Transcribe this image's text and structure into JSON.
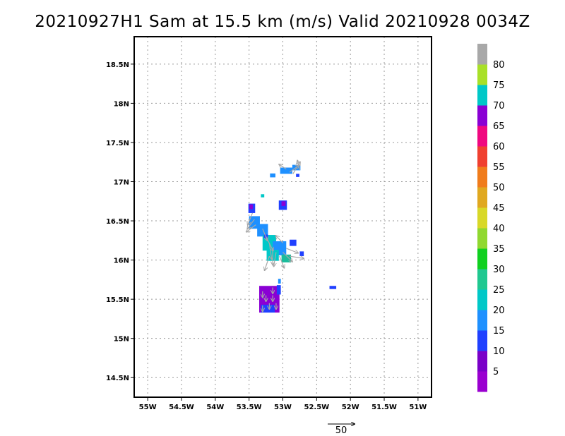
{
  "title": "20210927H1 Sam at 15.5 km (m/s) Valid 20210928 0034Z",
  "map": {
    "lon_range": [
      -55.2,
      -50.8
    ],
    "lat_range": [
      14.25,
      18.85
    ],
    "lon_ticks": [
      {
        "value": -55,
        "label": "55W"
      },
      {
        "value": -54.5,
        "label": "54.5W"
      },
      {
        "value": -54,
        "label": "54W"
      },
      {
        "value": -53.5,
        "label": "53.5W"
      },
      {
        "value": -53,
        "label": "53W"
      },
      {
        "value": -52.5,
        "label": "52.5W"
      },
      {
        "value": -52,
        "label": "52W"
      },
      {
        "value": -51.5,
        "label": "51.5W"
      },
      {
        "value": -51,
        "label": "51W"
      }
    ],
    "lat_ticks": [
      {
        "value": 18.5,
        "label": "18.5N"
      },
      {
        "value": 18,
        "label": "18N"
      },
      {
        "value": 17.5,
        "label": "17.5N"
      },
      {
        "value": 17,
        "label": "17N"
      },
      {
        "value": 16.5,
        "label": "16.5N"
      },
      {
        "value": 16,
        "label": "16N"
      },
      {
        "value": 15.5,
        "label": "15.5N"
      },
      {
        "value": 15,
        "label": "15N"
      },
      {
        "value": 14.5,
        "label": "14.5N"
      }
    ],
    "grid": true,
    "vector_color": "#a8a8a8"
  },
  "wind_patches": [
    {
      "lon": -52.95,
      "lat": 17.14,
      "w": 0.18,
      "h": 0.08,
      "color": "#1e90ff"
    },
    {
      "lon": -52.8,
      "lat": 17.18,
      "w": 0.12,
      "h": 0.07,
      "color": "#1e90ff"
    },
    {
      "lon": -53.15,
      "lat": 17.08,
      "w": 0.08,
      "h": 0.05,
      "color": "#1e90ff"
    },
    {
      "lon": -52.78,
      "lat": 17.08,
      "w": 0.05,
      "h": 0.04,
      "color": "#2040ff"
    },
    {
      "lon": -53.3,
      "lat": 16.82,
      "w": 0.05,
      "h": 0.04,
      "color": "#00c8c8"
    },
    {
      "lon": -53.0,
      "lat": 16.7,
      "w": 0.12,
      "h": 0.12,
      "color": "#2040ff"
    },
    {
      "lon": -52.99,
      "lat": 16.72,
      "w": 0.06,
      "h": 0.06,
      "color": "#8a00d4"
    },
    {
      "lon": -53.46,
      "lat": 16.66,
      "w": 0.1,
      "h": 0.12,
      "color": "#2040ff"
    },
    {
      "lon": -53.47,
      "lat": 16.68,
      "w": 0.05,
      "h": 0.06,
      "color": "#8a00d4"
    },
    {
      "lon": -53.42,
      "lat": 16.48,
      "w": 0.16,
      "h": 0.16,
      "color": "#1e90ff"
    },
    {
      "lon": -53.3,
      "lat": 16.38,
      "w": 0.16,
      "h": 0.16,
      "color": "#1e90ff"
    },
    {
      "lon": -53.2,
      "lat": 16.22,
      "w": 0.2,
      "h": 0.2,
      "color": "#00c8c8"
    },
    {
      "lon": -53.05,
      "lat": 16.15,
      "w": 0.2,
      "h": 0.18,
      "color": "#1e90ff"
    },
    {
      "lon": -53.15,
      "lat": 16.06,
      "w": 0.18,
      "h": 0.14,
      "color": "#00c8c8"
    },
    {
      "lon": -52.95,
      "lat": 16.02,
      "w": 0.14,
      "h": 0.1,
      "color": "#1abc9c"
    },
    {
      "lon": -52.85,
      "lat": 16.22,
      "w": 0.1,
      "h": 0.08,
      "color": "#2040ff"
    },
    {
      "lon": -52.72,
      "lat": 16.08,
      "w": 0.06,
      "h": 0.06,
      "color": "#2040ff"
    },
    {
      "lon": -53.25,
      "lat": 16.3,
      "w": 0.06,
      "h": 0.05,
      "color": "#2040ff"
    },
    {
      "lon": -53.2,
      "lat": 15.5,
      "w": 0.3,
      "h": 0.34,
      "color": "#8a00d4"
    },
    {
      "lon": -53.06,
      "lat": 15.62,
      "w": 0.06,
      "h": 0.12,
      "color": "#2040ff"
    },
    {
      "lon": -53.05,
      "lat": 15.73,
      "w": 0.04,
      "h": 0.06,
      "color": "#1e90ff"
    },
    {
      "lon": -53.22,
      "lat": 15.38,
      "w": 0.2,
      "h": 0.1,
      "color": "#2040ff"
    },
    {
      "lon": -52.26,
      "lat": 15.65,
      "w": 0.1,
      "h": 0.04,
      "color": "#2040ff"
    }
  ],
  "wind_vectors": [
    {
      "lon": -52.9,
      "lat": 17.12,
      "u": 8,
      "v": 6
    },
    {
      "lon": -52.85,
      "lat": 17.1,
      "u": 6,
      "v": 10
    },
    {
      "lon": -52.95,
      "lat": 17.16,
      "u": -6,
      "v": 4
    },
    {
      "lon": -52.75,
      "lat": 17.15,
      "u": -2,
      "v": 8
    },
    {
      "lon": -53.45,
      "lat": 16.6,
      "u": -4,
      "v": -10
    },
    {
      "lon": -53.42,
      "lat": 16.52,
      "u": -6,
      "v": -8
    },
    {
      "lon": -53.4,
      "lat": 16.45,
      "u": -8,
      "v": -6
    },
    {
      "lon": -53.3,
      "lat": 16.4,
      "u": 4,
      "v": -10
    },
    {
      "lon": -53.25,
      "lat": 16.3,
      "u": 6,
      "v": -12
    },
    {
      "lon": -53.2,
      "lat": 16.22,
      "u": 2,
      "v": -14
    },
    {
      "lon": -53.15,
      "lat": 16.15,
      "u": 0,
      "v": -14
    },
    {
      "lon": -53.1,
      "lat": 16.1,
      "u": -2,
      "v": -12
    },
    {
      "lon": -53.05,
      "lat": 16.05,
      "u": 4,
      "v": -10
    },
    {
      "lon": -53.0,
      "lat": 16.1,
      "u": 8,
      "v": -8
    },
    {
      "lon": -52.95,
      "lat": 16.15,
      "u": 10,
      "v": -4
    },
    {
      "lon": -52.9,
      "lat": 16.05,
      "u": 12,
      "v": -2
    },
    {
      "lon": -53.2,
      "lat": 16.05,
      "u": -4,
      "v": -12
    },
    {
      "lon": -53.0,
      "lat": 16.22,
      "u": -6,
      "v": 6
    },
    {
      "lon": -53.3,
      "lat": 15.6,
      "u": 0,
      "v": -5
    },
    {
      "lon": -53.25,
      "lat": 15.55,
      "u": 0,
      "v": -5
    },
    {
      "lon": -53.15,
      "lat": 15.55,
      "u": 0,
      "v": -5
    },
    {
      "lon": -53.2,
      "lat": 15.45,
      "u": 0,
      "v": -5
    },
    {
      "lon": -53.1,
      "lat": 15.45,
      "u": 0,
      "v": -5
    },
    {
      "lon": -53.3,
      "lat": 15.42,
      "u": 0,
      "v": -5
    },
    {
      "lon": -53.15,
      "lat": 15.65,
      "u": 0,
      "v": -5
    }
  ],
  "colorbar": {
    "colors": [
      "#9a00d0",
      "#7a00c8",
      "#2040ff",
      "#1e90ff",
      "#00c8c8",
      "#20c890",
      "#10d020",
      "#90d830",
      "#d8d828",
      "#e0a820",
      "#f07c1c",
      "#f04030",
      "#f00880",
      "#8a00d4",
      "#00c8c8",
      "#a8e028",
      "#a8a8a8"
    ],
    "labels": [
      "5",
      "10",
      "15",
      "20",
      "25",
      "30",
      "35",
      "40",
      "45",
      "50",
      "55",
      "60",
      "65",
      "70",
      "75",
      "80"
    ]
  },
  "reference_vector": {
    "label": "50"
  }
}
